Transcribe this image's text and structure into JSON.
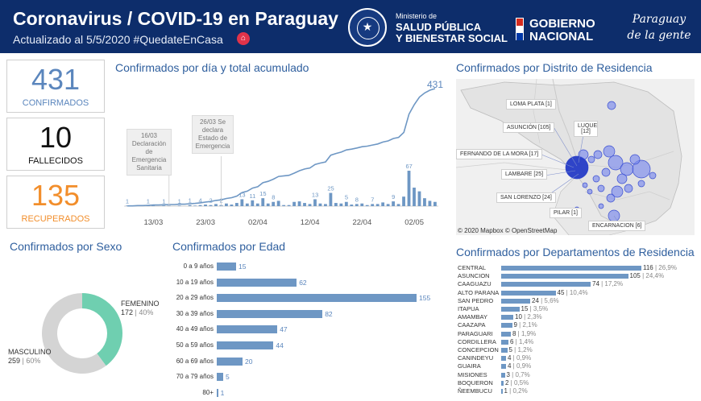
{
  "header": {
    "title": "Coronavirus / COVID-19 en Paraguay",
    "subtitle": "Actualizado al 5/5/2020 #QuedateEnCasa",
    "ministry_small": "Ministerio de",
    "ministry_line1": "SALUD PÚBLICA",
    "ministry_line2": "Y BIENESTAR SOCIAL",
    "gov_line1": "GOBIERNO",
    "gov_line2": "NACIONAL",
    "motto_line1": "Paraguay",
    "motto_line2": "de la gente",
    "seal_icon": "national-seal-icon",
    "house_icon": "house-icon",
    "flag_icon": "paraguay-flag-icon",
    "flag_colors": [
      "#d52b1e",
      "#ffffff",
      "#0038a8"
    ],
    "bg_color": "#0d2d6b"
  },
  "kpis": {
    "confirmed": {
      "value": "431",
      "label": "CONFIRMADOS",
      "color": "#5b86bd"
    },
    "deaths": {
      "value": "10",
      "label": "FALLECIDOS",
      "color": "#111111"
    },
    "recovered": {
      "value": "135",
      "label": "RECUPERADOS",
      "color": "#f28e2b"
    }
  },
  "titles": {
    "daily": "Confirmados por día y total acumulado",
    "district": "Confirmados por Distrito de Residencia",
    "sex": "Confirmados por Sexo",
    "age": "Confirmados por Edad",
    "department": "Confirmados por Departamentos de Residencia"
  },
  "annotations": {
    "a1": "16/03 Declaración de Emergencia Sanitaria",
    "a2": "26/03 Se declara Estado de Emergencia"
  },
  "map": {
    "attribution": "© 2020 Mapbox © OpenStreetMap",
    "labels": [
      "LOMA PLATA [1]",
      "ASUNCIÓN [105]",
      "LUQUE [12]",
      "FERNANDO DE LA MORA [17]",
      "LAMBARE [25]",
      "SAN LORENZO [24]",
      "PILAR [1]",
      "ENCARNACION [6]"
    ]
  },
  "chart_data": [
    {
      "type": "line",
      "title": "Confirmados por día y total acumulado",
      "x_tick_labels": [
        "13/03",
        "23/03",
        "02/04",
        "12/04",
        "22/04",
        "02/05"
      ],
      "series": [
        {
          "type": "bar",
          "values": [
            1,
            0,
            1,
            0,
            1,
            1,
            0,
            1,
            1,
            0,
            1,
            0,
            2,
            1,
            2,
            3,
            2,
            4,
            2,
            5,
            3,
            6,
            13,
            5,
            11,
            5,
            15,
            5,
            8,
            10,
            2,
            2,
            8,
            9,
            6,
            4,
            13,
            5,
            4,
            25,
            6,
            5,
            8,
            3,
            4,
            5,
            2,
            4,
            4,
            7,
            4,
            9,
            4,
            18,
            67,
            35,
            28,
            15,
            10,
            8
          ]
        },
        {
          "type": "line",
          "values": [
            1,
            1,
            2,
            2,
            3,
            4,
            4,
            5,
            6,
            6,
            7,
            7,
            9,
            10,
            12,
            15,
            17,
            21,
            23,
            28,
            31,
            37,
            50,
            55,
            66,
            71,
            86,
            91,
            99,
            109,
            111,
            113,
            121,
            130,
            136,
            140,
            153,
            158,
            162,
            187,
            193,
            198,
            206,
            209,
            213,
            218,
            220,
            224,
            228,
            235,
            239,
            248,
            252,
            270,
            337,
            372,
            400,
            415,
            425,
            431
          ],
          "end_label": "431"
        }
      ],
      "bar_value_labels": [
        "1",
        "1",
        "1",
        "1",
        "1",
        "4",
        "2",
        "2",
        "13",
        "11",
        "15",
        "8",
        "13",
        "25",
        "5",
        "8",
        "7",
        "9",
        "67"
      ],
      "annotation_dates": [
        "16/03",
        "26/03"
      ]
    },
    {
      "type": "pie",
      "title": "Confirmados por Sexo",
      "series": [
        {
          "name": "FEMENINO",
          "value": 172,
          "percent": "40%",
          "color": "#6fcfb0"
        },
        {
          "name": "MASCULINO",
          "value": 259,
          "percent": "60%",
          "color": "#d4d4d4"
        }
      ]
    },
    {
      "type": "bar",
      "title": "Confirmados por Edad",
      "categories": [
        "0 a 9 años",
        "10 a 19 años",
        "20 a 29 años",
        "30 a 39 años",
        "40 a 49 años",
        "50 a 59 años",
        "60 a 69 años",
        "70 a 79 años",
        "80+"
      ],
      "values": [
        15,
        62,
        155,
        82,
        47,
        44,
        20,
        5,
        1
      ]
    },
    {
      "type": "bar",
      "title": "Confirmados por Departamentos de Residencia",
      "categories": [
        "CENTRAL",
        "ASUNCION",
        "CAAGUAZU",
        "ALTO PARANA",
        "SAN PEDRO",
        "ITAPUA",
        "AMAMBAY",
        "CAAZAPA",
        "PARAGUARI",
        "CORDILLERA",
        "CONCEPCION",
        "CANINDEYU",
        "GUAIRA",
        "MISIONES",
        "BOQUERON",
        "ÑEEMBUCU"
      ],
      "values": [
        116,
        105,
        74,
        45,
        24,
        15,
        10,
        9,
        8,
        6,
        5,
        4,
        4,
        3,
        2,
        1
      ],
      "percents": [
        "26,9%",
        "24,4%",
        "17,2%",
        "10,4%",
        "5,6%",
        "3,5%",
        "2,3%",
        "2,1%",
        "1,9%",
        "1,4%",
        "1,2%",
        "0,9%",
        "0,9%",
        "0,7%",
        "0,5%",
        "0,2%"
      ]
    }
  ]
}
